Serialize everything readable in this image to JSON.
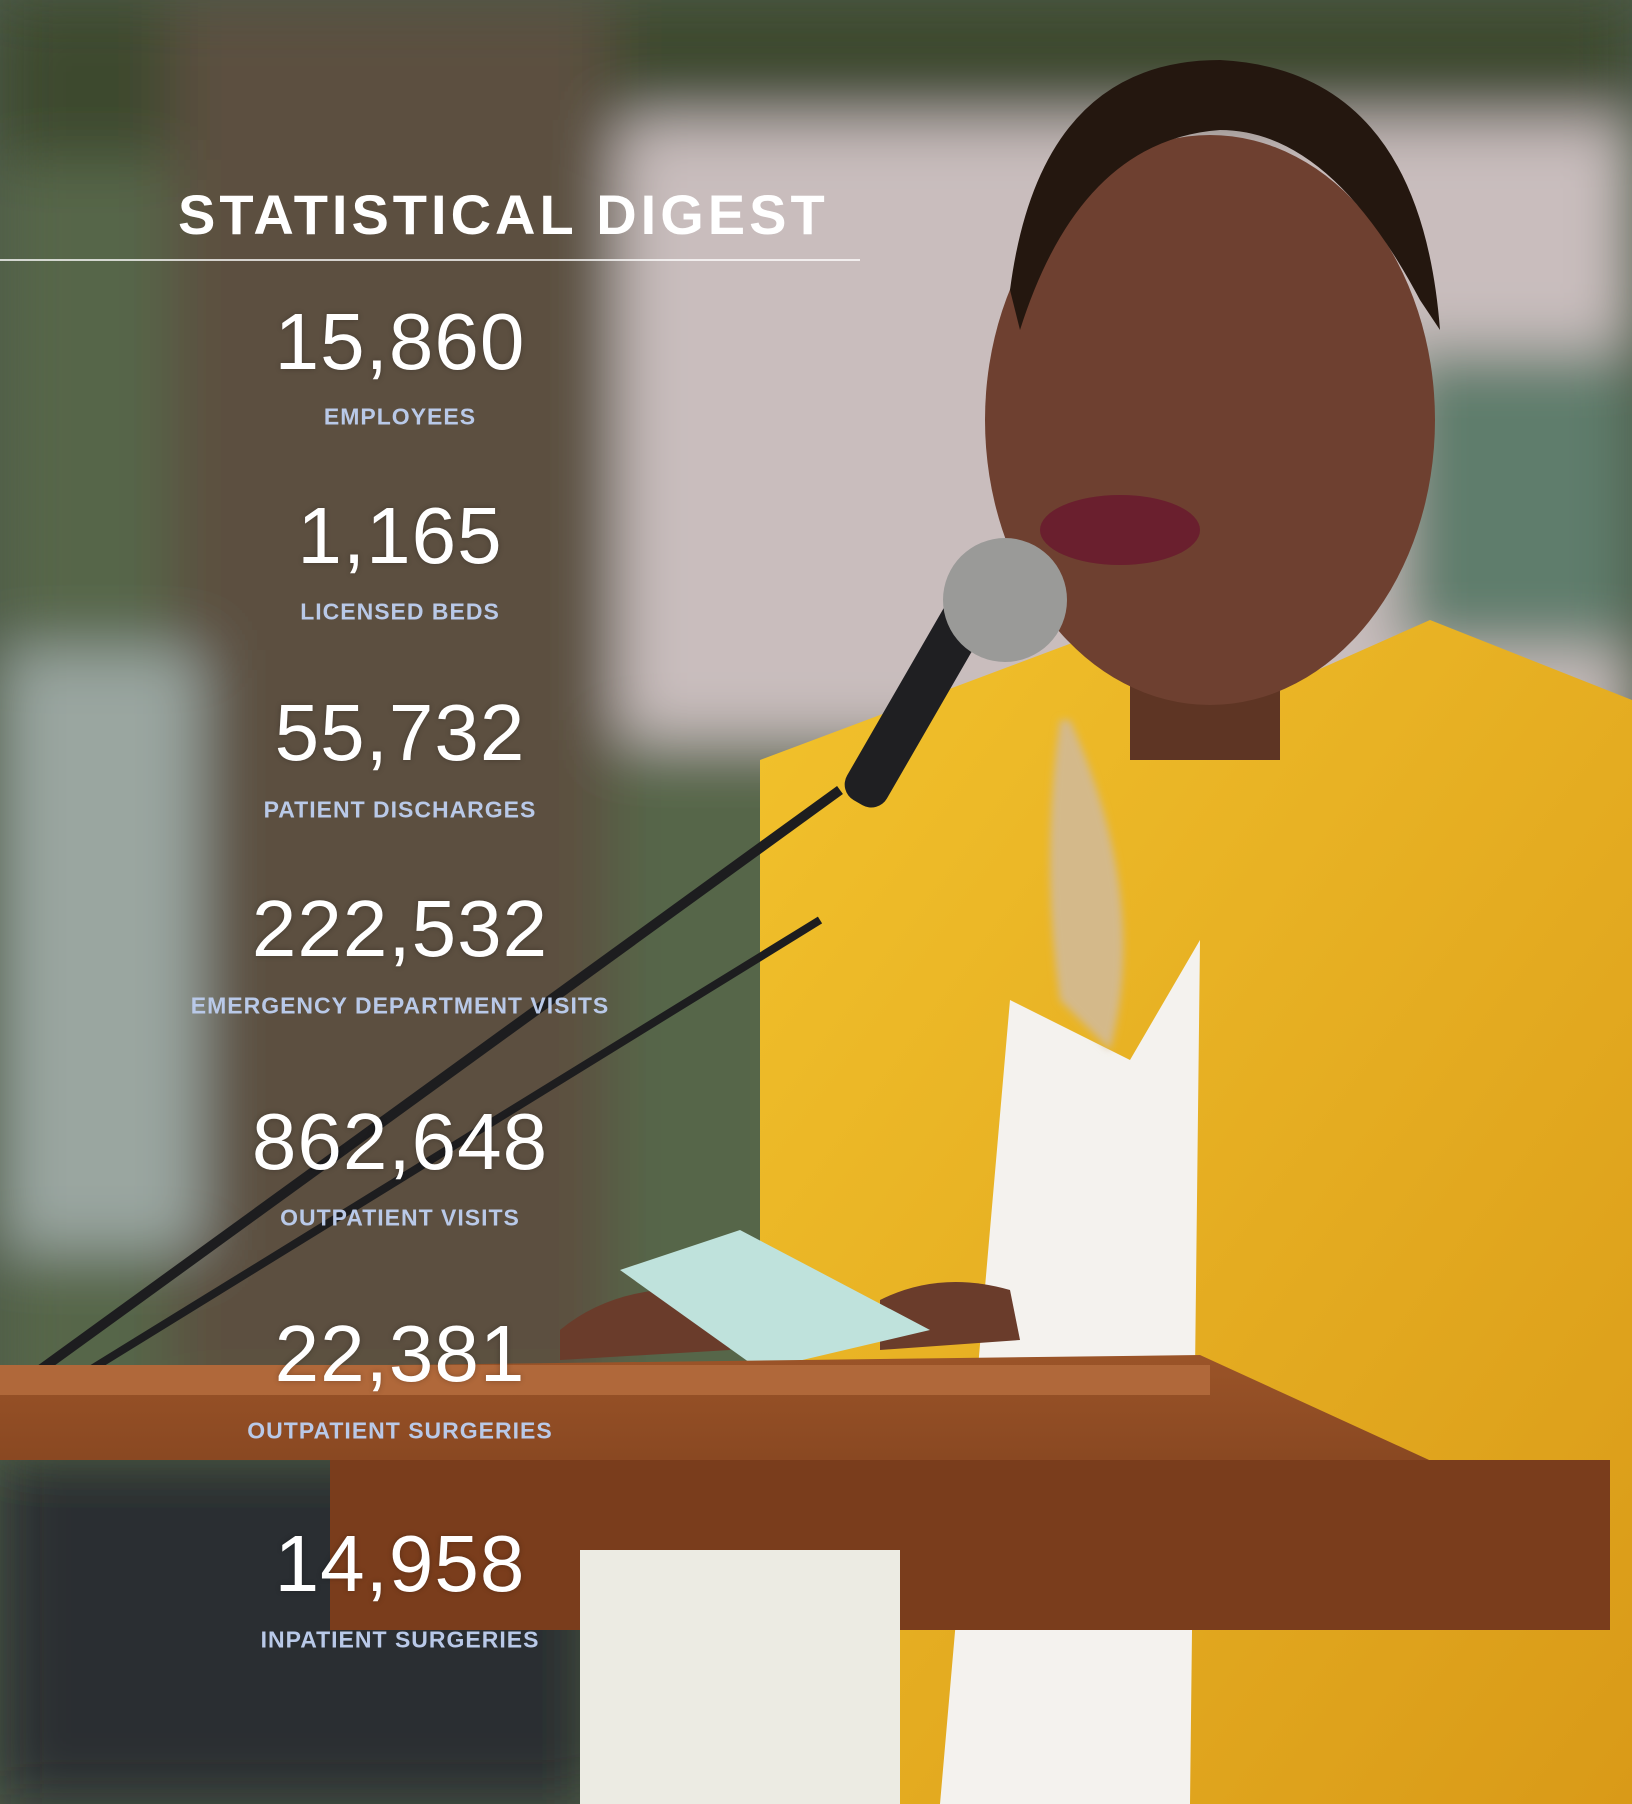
{
  "title": "STATISTICAL DIGEST",
  "stats": [
    {
      "value": "15,860",
      "label": "EMPLOYEES"
    },
    {
      "value": "1,165",
      "label": "LICENSED BEDS"
    },
    {
      "value": "55,732",
      "label": "PATIENT DISCHARGES"
    },
    {
      "value": "222,532",
      "label": "EMERGENCY DEPARTMENT VISITS"
    },
    {
      "value": "862,648",
      "label": "OUTPATIENT VISITS"
    },
    {
      "value": "22,381",
      "label": "OUTPATIENT SURGERIES"
    },
    {
      "value": "14,958",
      "label": "INPATIENT SURGERIES"
    }
  ]
}
